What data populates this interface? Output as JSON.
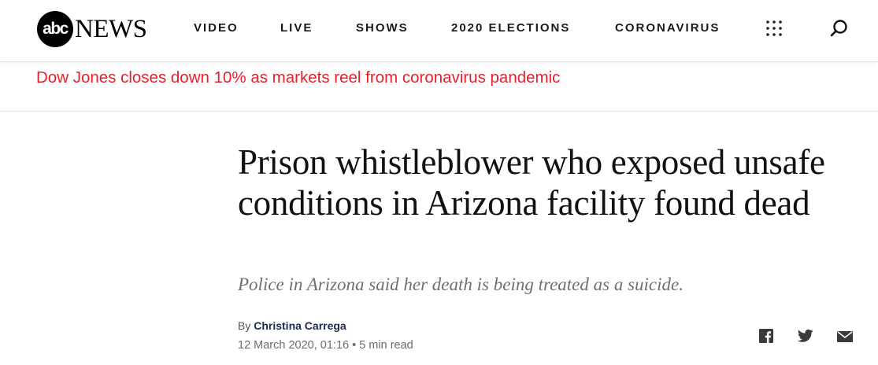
{
  "header": {
    "logo": {
      "abc": "abc",
      "news": "NEWS"
    },
    "nav": [
      {
        "label": "VIDEO"
      },
      {
        "label": "LIVE"
      },
      {
        "label": "SHOWS"
      },
      {
        "label": "2020 ELECTIONS"
      },
      {
        "label": "CORONAVIRUS"
      }
    ],
    "icons": {
      "menu": "grid-icon",
      "search": "search-icon"
    }
  },
  "banner": {
    "text": "Dow Jones closes down 10% as markets reel from coronavirus pandemic",
    "color": "#e8202e"
  },
  "article": {
    "headline": "Prison whistleblower who exposed unsafe conditions in Arizona facility found dead",
    "subhead": "Police in Arizona said her death is being treated as a suicide.",
    "byline_prefix": "By",
    "author": "Christina Carrega",
    "date": "12 March 2020, 01:16",
    "separator": "•",
    "read_time": "5 min read"
  },
  "share": {
    "icons": [
      "facebook-icon",
      "twitter-icon",
      "email-icon"
    ]
  }
}
